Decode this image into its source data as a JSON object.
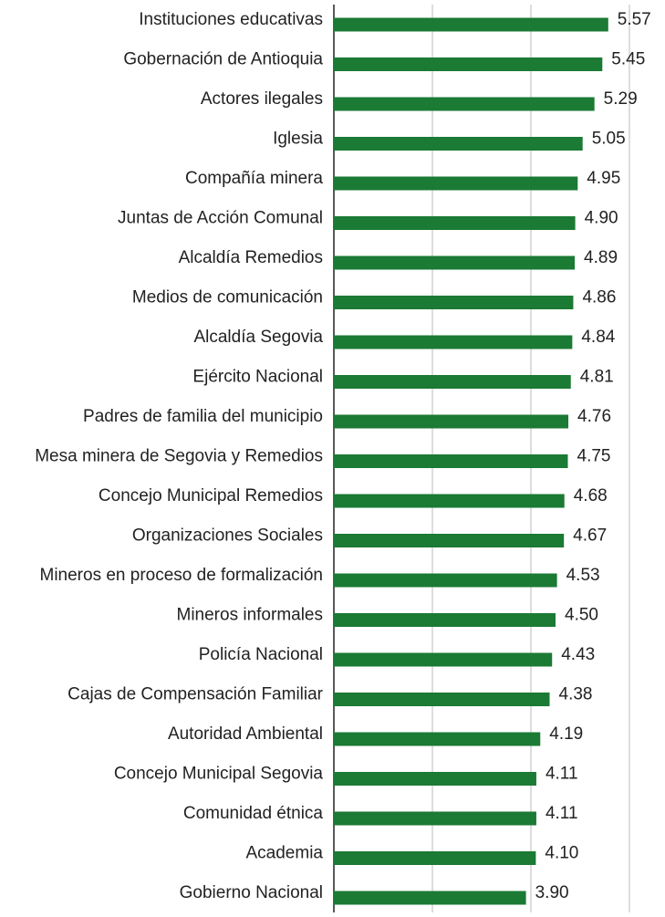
{
  "chart_data": {
    "type": "barh",
    "categories": [
      "Instituciones educativas",
      "Gobernación de Antioquia",
      "Actores ilegales",
      "Iglesia",
      "Compañía minera",
      "Juntas de Acción Comunal",
      "Alcaldía Remedios",
      "Medios de comunicación",
      "Alcaldía Segovia",
      "Ejército Nacional",
      "Padres de familia del municipio",
      "Mesa minera de Segovia y Remedios",
      "Concejo Municipal Remedios",
      "Organizaciones Sociales",
      "Mineros en proceso de formalización",
      "Mineros informales",
      "Policía Nacional",
      "Cajas de Compensación Familiar",
      "Autoridad Ambiental",
      "Concejo Municipal Segovia",
      "Comunidad étnica",
      "Academia",
      "Gobierno Nacional"
    ],
    "values": [
      5.57,
      5.45,
      5.29,
      5.05,
      4.95,
      4.9,
      4.89,
      4.86,
      4.84,
      4.81,
      4.76,
      4.75,
      4.68,
      4.67,
      4.53,
      4.5,
      4.43,
      4.38,
      4.19,
      4.11,
      4.11,
      4.1,
      3.9
    ],
    "value_labels": [
      "5.57",
      "5.45",
      "5.29",
      "5.05",
      "4.95",
      "4.90",
      "4.89",
      "4.86",
      "4.84",
      "4.81",
      "4.76",
      "4.75",
      "4.68",
      "4.67",
      "4.53",
      "4.50",
      "4.43",
      "4.38",
      "4.19",
      "4.11",
      "4.11",
      "4.10",
      "3.90"
    ],
    "color": "#1b7a34",
    "xlim": [
      0,
      6
    ],
    "xticks": [
      0,
      2,
      4,
      6
    ],
    "grid": true
  }
}
